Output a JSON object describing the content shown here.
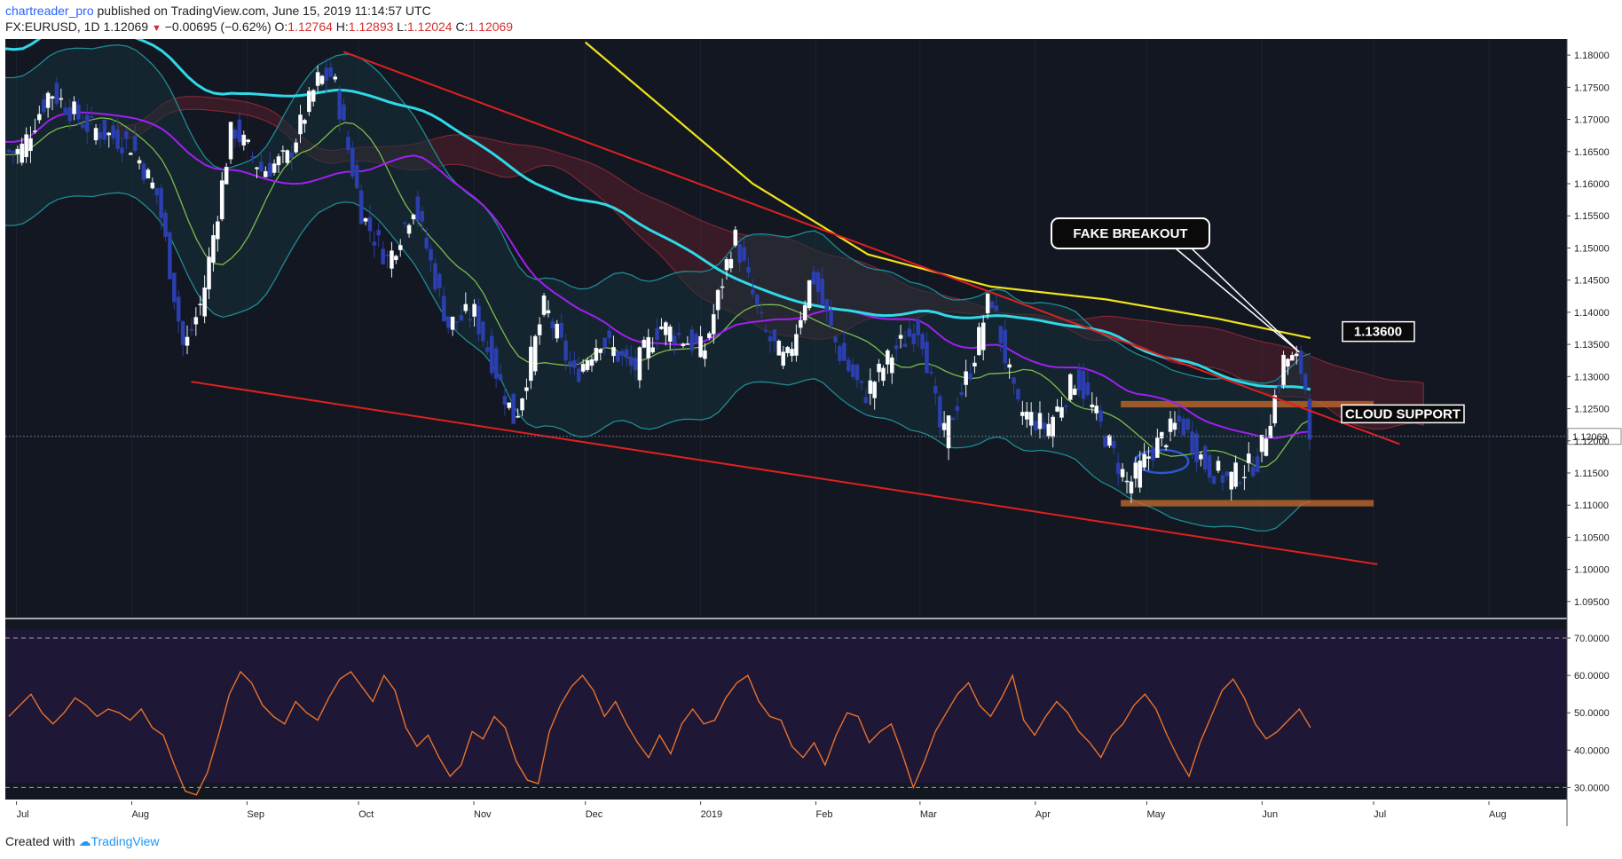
{
  "header": {
    "author": "chartreader_pro",
    "published_text": " published on TradingView.com, June 15, 2019 11:14:57 UTC",
    "symbol": "FX:EURUSD, 1D",
    "last": "1.12069",
    "change": "−0.00695 (−0.62%)",
    "o_label": "O:",
    "o": "1.12764",
    "h_label": "H:",
    "h": "1.12893",
    "l_label": "L:",
    "l": "1.12024",
    "c_label": "C:",
    "c": "1.12069"
  },
  "footer": {
    "created_with": "Created with",
    "brand": "TradingView"
  },
  "colors": {
    "background": "#131722",
    "rsi_background": "#1e1736",
    "trendline": "#e02020",
    "ma_cyan": "#2fd9e6",
    "ma_yellow": "#f0e21c",
    "ma_purple": "#a020f0",
    "rsi_line": "#e8732a",
    "zone": "#c0672a"
  },
  "annotations": {
    "fake_breakout": "FAKE BREAKOUT",
    "level": "1.13600",
    "cloud_support": "CLOUD SUPPORT",
    "last_price": "1.12069"
  },
  "chart_data": {
    "type": "candlestick",
    "symbol": "FX:EURUSD",
    "timeframe": "1D",
    "price_axis_ticks": [
      "1.18000",
      "1.17500",
      "1.17000",
      "1.16500",
      "1.16000",
      "1.15500",
      "1.15000",
      "1.14500",
      "1.14000",
      "1.13500",
      "1.13000",
      "1.12500",
      "1.12000",
      "1.11500",
      "1.11000",
      "1.10500",
      "1.10000",
      "1.09500"
    ],
    "price_range": [
      1.0925,
      1.1825
    ],
    "time_axis_labels": [
      "Jul",
      "Aug",
      "Sep",
      "Oct",
      "Nov",
      "Dec",
      "2019",
      "Feb",
      "Mar",
      "Apr",
      "May",
      "Jun",
      "Jul",
      "Aug"
    ],
    "close_path": [
      [
        "2018-07-02",
        1.165
      ],
      [
        "2018-07-10",
        1.1745
      ],
      [
        "2018-07-20",
        1.169
      ],
      [
        "2018-08-01",
        1.166
      ],
      [
        "2018-08-08",
        1.158
      ],
      [
        "2018-08-15",
        1.134
      ],
      [
        "2018-08-20",
        1.142
      ],
      [
        "2018-08-28",
        1.169
      ],
      [
        "2018-09-05",
        1.162
      ],
      [
        "2018-09-12",
        1.164
      ],
      [
        "2018-09-20",
        1.176
      ],
      [
        "2018-09-24",
        1.177
      ],
      [
        "2018-10-02",
        1.155
      ],
      [
        "2018-10-09",
        1.148
      ],
      [
        "2018-10-16",
        1.157
      ],
      [
        "2018-10-25",
        1.138
      ],
      [
        "2018-11-01",
        1.14
      ],
      [
        "2018-11-12",
        1.123
      ],
      [
        "2018-11-20",
        1.141
      ],
      [
        "2018-11-28",
        1.13
      ],
      [
        "2018-12-05",
        1.136
      ],
      [
        "2018-12-14",
        1.131
      ],
      [
        "2018-12-21",
        1.138
      ],
      [
        "2019-01-02",
        1.134
      ],
      [
        "2019-01-10",
        1.152
      ],
      [
        "2019-01-18",
        1.137
      ],
      [
        "2019-01-24",
        1.132
      ],
      [
        "2019-01-31",
        1.146
      ],
      [
        "2019-02-07",
        1.134
      ],
      [
        "2019-02-14",
        1.127
      ],
      [
        "2019-02-22",
        1.134
      ],
      [
        "2019-03-01",
        1.138
      ],
      [
        "2019-03-07",
        1.12
      ],
      [
        "2019-03-15",
        1.132
      ],
      [
        "2019-03-20",
        1.143
      ],
      [
        "2019-03-27",
        1.125
      ],
      [
        "2019-04-04",
        1.122
      ],
      [
        "2019-04-12",
        1.13
      ],
      [
        "2019-04-18",
        1.123
      ],
      [
        "2019-04-26",
        1.113
      ],
      [
        "2019-05-03",
        1.119
      ],
      [
        "2019-05-10",
        1.123
      ],
      [
        "2019-05-17",
        1.116
      ],
      [
        "2019-05-23",
        1.114
      ],
      [
        "2019-05-31",
        1.117
      ],
      [
        "2019-06-05",
        1.128
      ],
      [
        "2019-06-07",
        1.133
      ],
      [
        "2019-06-11",
        1.132
      ],
      [
        "2019-06-13",
        1.1275
      ],
      [
        "2019-06-14",
        1.1207
      ]
    ],
    "rsi": {
      "ticks": [
        "70.0000",
        "60.0000",
        "50.0000",
        "40.0000",
        "30.0000"
      ],
      "bands": [
        70,
        30
      ],
      "range": [
        27,
        75
      ],
      "values": [
        49,
        52,
        55,
        50,
        47,
        50,
        54,
        52,
        49,
        51,
        50,
        48,
        51,
        46,
        44,
        36,
        29,
        28,
        34,
        44,
        55,
        61,
        58,
        52,
        49,
        47,
        53,
        50,
        48,
        54,
        59,
        61,
        57,
        53,
        60,
        56,
        46,
        41,
        44,
        38,
        33,
        36,
        45,
        43,
        49,
        46,
        37,
        32,
        31,
        45,
        52,
        57,
        60,
        56,
        49,
        53,
        47,
        42,
        38,
        44,
        39,
        47,
        51,
        47,
        48,
        54,
        58,
        60,
        53,
        49,
        48,
        41,
        38,
        42,
        36,
        44,
        50,
        49,
        42,
        45,
        47,
        39,
        30,
        37,
        45,
        50,
        55,
        58,
        52,
        49,
        54,
        60,
        48,
        44,
        49,
        53,
        50,
        45,
        42,
        38,
        44,
        47,
        52,
        55,
        51,
        44,
        38,
        33,
        42,
        49,
        56,
        59,
        54,
        47,
        43,
        45,
        48,
        51,
        46
      ]
    }
  }
}
